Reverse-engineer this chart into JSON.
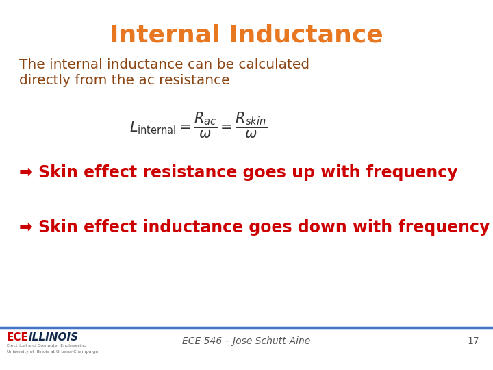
{
  "title": "Internal Inductance",
  "title_color": "#E87722",
  "title_fontsize": 26,
  "body_text_color": "#8B4513",
  "body_fontsize": 14.5,
  "body_text_line1": "The internal inductance can be calculated",
  "body_text_line2": "directly from the ac resistance",
  "formula": "$L_{\\mathrm{internal}} = \\dfrac{R_{ac}}{\\omega} = \\dfrac{R_{skin}}{\\omega}$",
  "formula_color": "#333333",
  "formula_fontsize": 15,
  "bullet1": "➡ Skin effect resistance goes up with frequency",
  "bullet2": "➡ Skin effect inductance goes down with frequency",
  "bullet_color": "#CC0000",
  "bullet_fontsize": 17,
  "footer_line_color": "#4472C4",
  "footer_text": "ECE 546 – Jose Schutt-Aine",
  "footer_number": "17",
  "footer_fontsize": 10,
  "bg_color": "#FFFFFF",
  "logo_ece_color": "#CC0000",
  "logo_illinois_color": "#13294B"
}
